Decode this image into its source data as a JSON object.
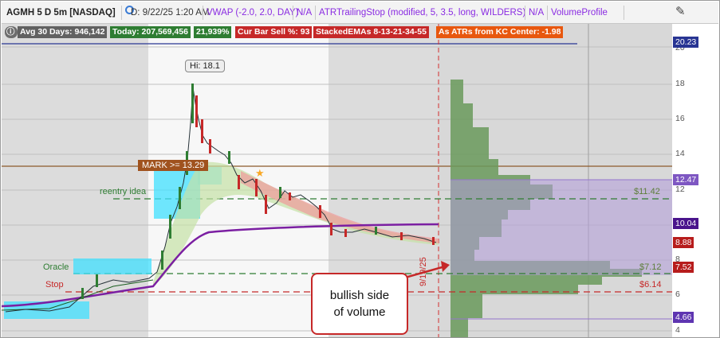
{
  "header": {
    "symbol": "AGMH 5 D 5m [NASDAQ]",
    "date": "D: 9/22/25 1:20 AM",
    "vwap": "VWAP (-2.0, 2.0, DAY)",
    "na1": "N/A",
    "atr": "ATRTrailingStop (modified, 5, 3.5, long, WILDERS)",
    "na2": "N/A",
    "vp": "VolumeProfile"
  },
  "studies": {
    "avg30": "Avg 30 Days: 946,142",
    "today": "Today: 207,569,456",
    "pct": "21,939%",
    "curbar": "Cur Bar Sell %: 93",
    "stacked": "StackedEMAs 8-13-21-34-55",
    "atrs": "As ATRs from KC Center: -1.98"
  },
  "chart": {
    "hi_label": "Hi: 18.1",
    "mark_label": "MARK >= 13.29",
    "reentry": "reentry idea",
    "oracle": "Oracle",
    "stop": "Stop",
    "vp_11": "$11.42",
    "vp_7": "$7.12",
    "vp_6": "$6.14",
    "date_rot": "9/19/25",
    "callout_line1": "bullish side",
    "callout_line2": "of volume"
  },
  "yaxis": {
    "ticks": [
      "20",
      "18",
      "16",
      "14",
      "12",
      "10",
      "8",
      "6",
      "4"
    ],
    "tags": {
      "p2023": "20.23",
      "p1247": "12.47",
      "p1004": "10.04",
      "p888": "8.88",
      "p752": "7.52",
      "p466": "4.66"
    }
  },
  "colors": {
    "up": "#2e7d32",
    "down": "#b71c1c",
    "vwap": "#7b1fa2",
    "profile": "#6a9a5c",
    "value_area": "#b39ddb",
    "accent": "#c62828"
  }
}
